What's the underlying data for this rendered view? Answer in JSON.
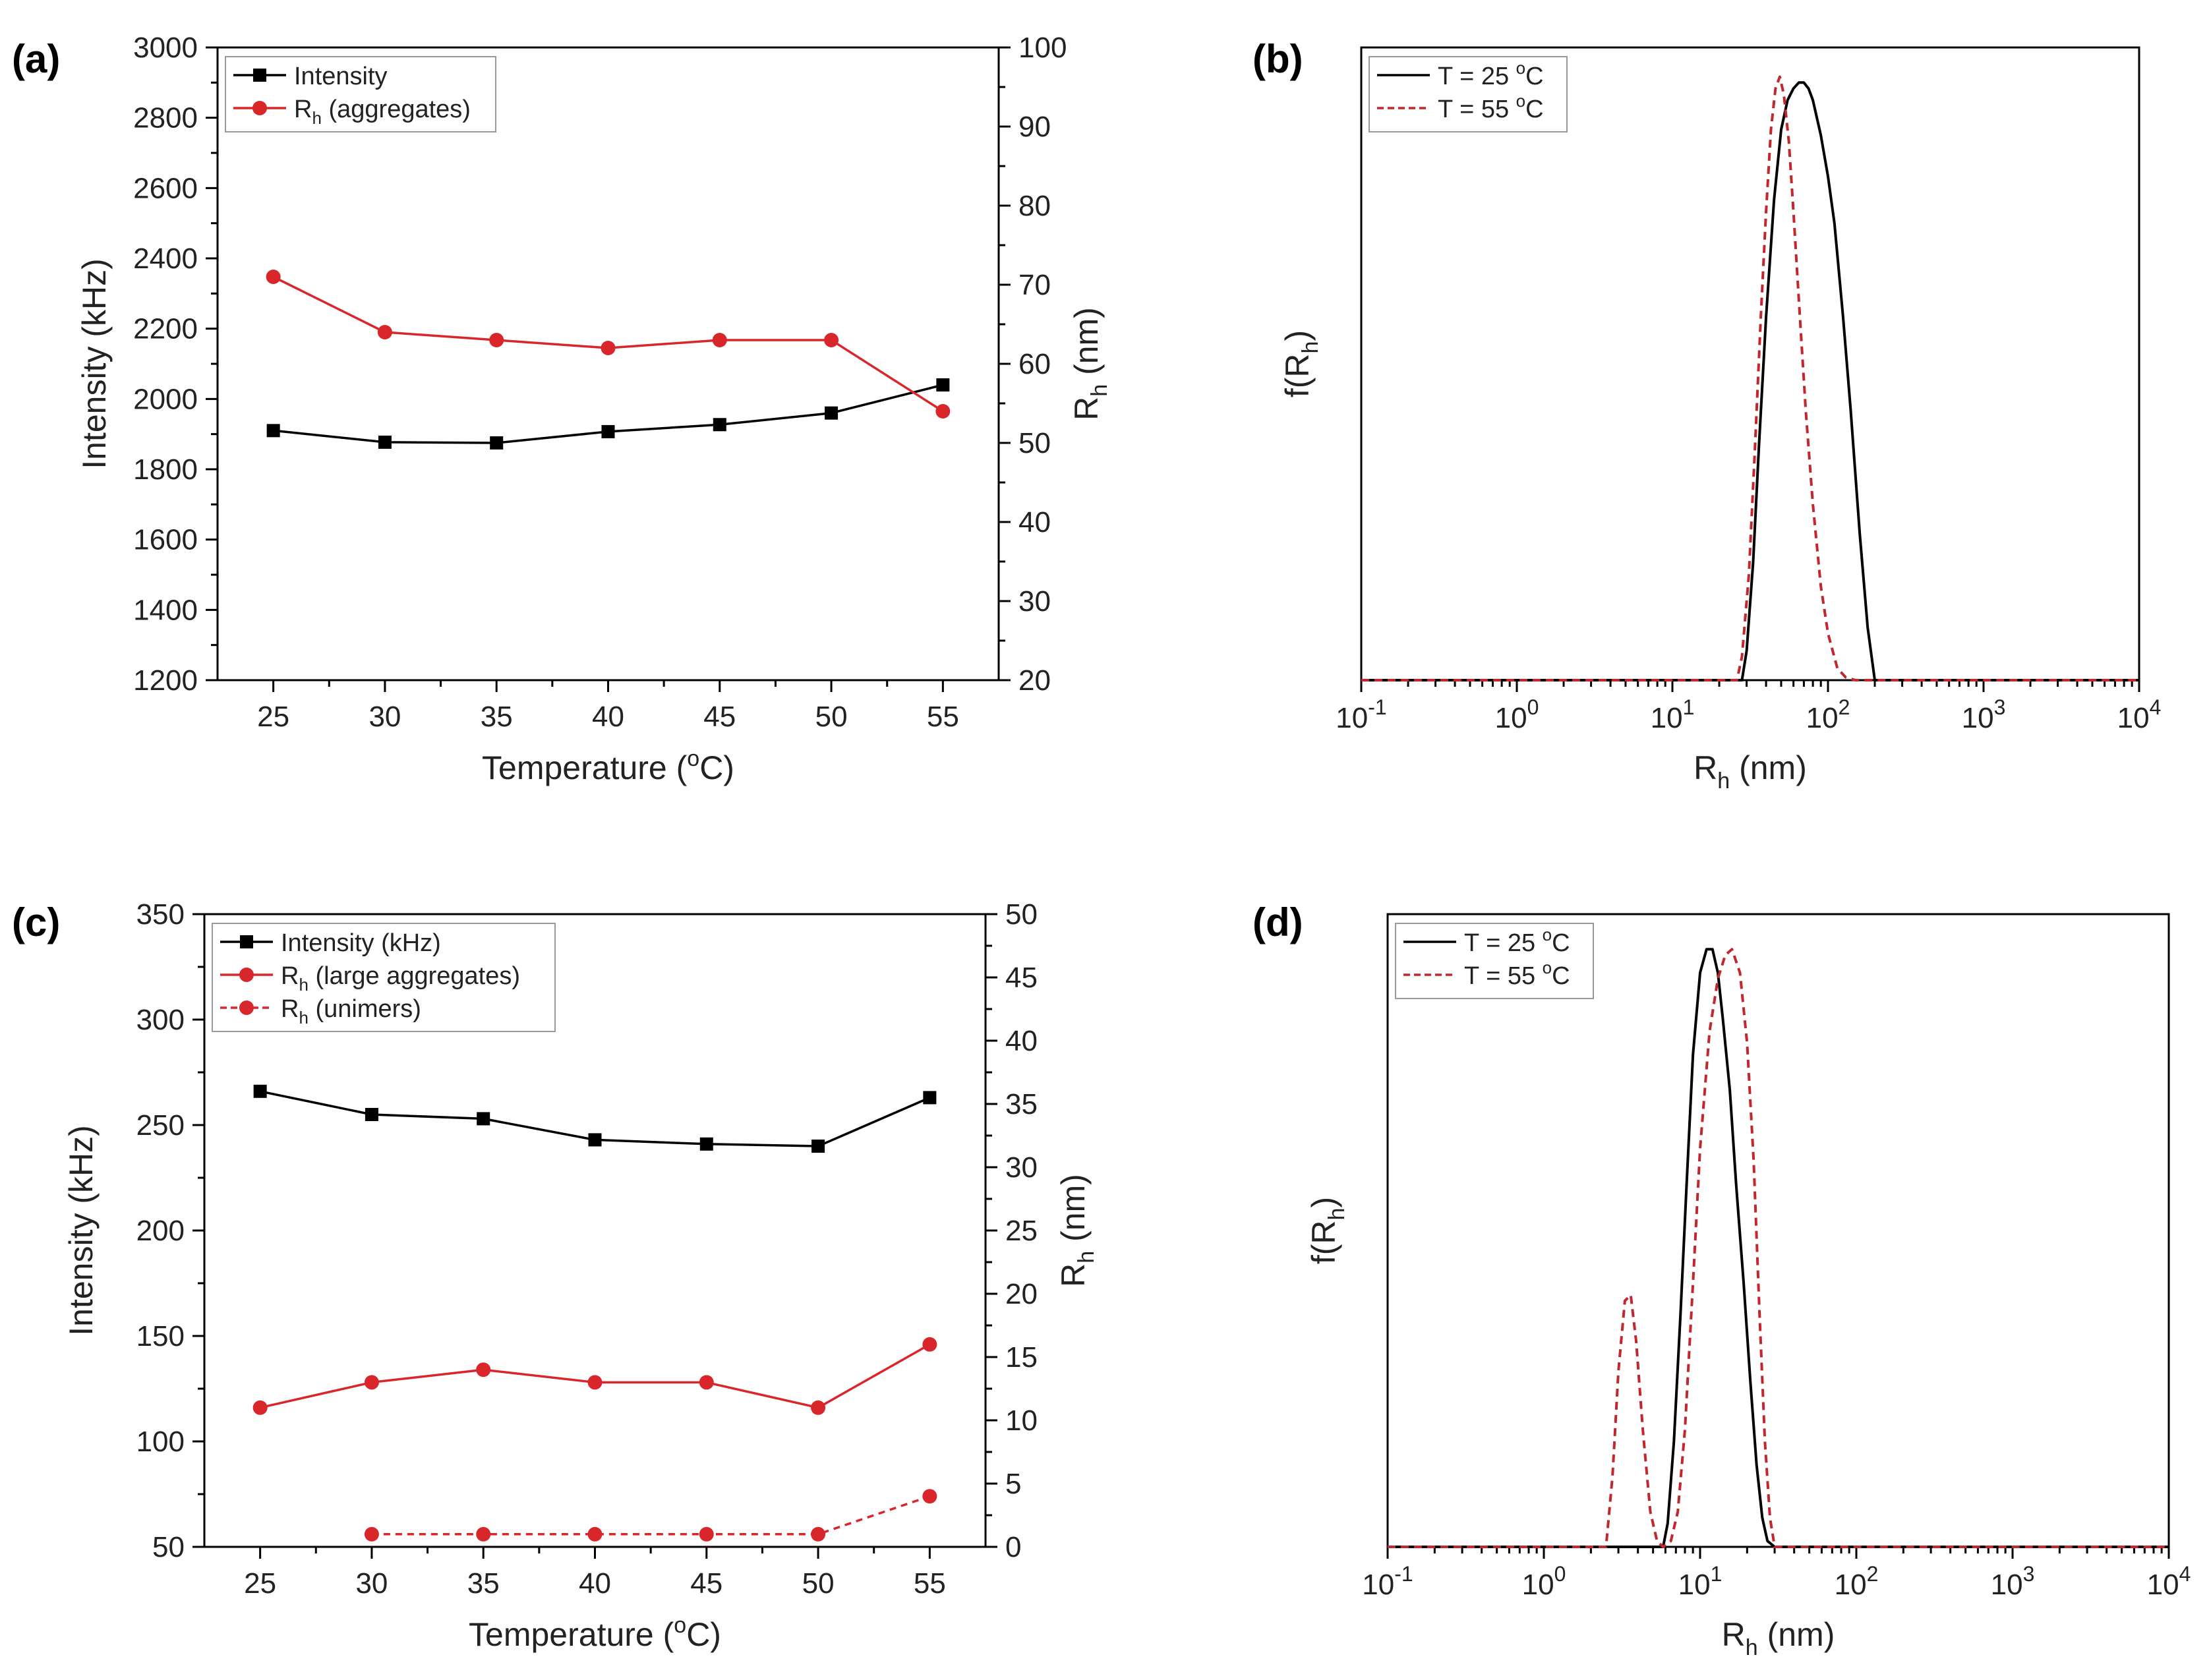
{
  "chart_data": [
    {
      "id": "a",
      "panel_label": "(a)",
      "type": "line",
      "title": "",
      "xlabel": "Temperature (oC)",
      "xlabel_main": "Temperature (",
      "xlabel_sup": "o",
      "xlabel_tail": "C)",
      "ylabel": "Intensity (kHz)",
      "y2label_main": "R",
      "y2label_sub": "h",
      "y2label_tail": " (nm)",
      "xlim": [
        22.5,
        57.5
      ],
      "ylim": [
        1200,
        3000
      ],
      "y2lim": [
        20,
        100
      ],
      "xticks": [
        25,
        30,
        35,
        40,
        45,
        50,
        55
      ],
      "yticks": [
        1200,
        1400,
        1600,
        1800,
        2000,
        2200,
        2400,
        2600,
        2800,
        3000
      ],
      "y2ticks": [
        20,
        30,
        40,
        50,
        60,
        70,
        80,
        90,
        100
      ],
      "legend_position": "top-left",
      "series": [
        {
          "name": "Intensity",
          "axis": "left",
          "color": "#000000",
          "marker": "square",
          "dashed": false,
          "legend_main": "Intensity",
          "legend_sub": "",
          "legend_tail": "",
          "x": [
            25,
            30,
            35,
            40,
            45,
            50,
            55
          ],
          "values": [
            1910,
            1877,
            1875,
            1907,
            1927,
            1960,
            2040
          ]
        },
        {
          "name": "Rh (aggregates)",
          "axis": "right",
          "color": "#d9262b",
          "marker": "circle",
          "dashed": false,
          "legend_main": "R",
          "legend_sub": "h",
          "legend_tail": " (aggregates)",
          "x": [
            25,
            30,
            35,
            40,
            45,
            50,
            55
          ],
          "values": [
            71,
            64,
            63,
            62,
            63,
            63,
            54
          ]
        }
      ]
    },
    {
      "id": "b",
      "panel_label": "(b)",
      "type": "line",
      "title": "",
      "xlabel": "Rh (nm)",
      "xlabel_main": "R",
      "xlabel_sub": "h",
      "xlabel_tail": " (nm)",
      "ylabel": "f(Rh)",
      "ylabel_main": "f(R",
      "ylabel_sub": "h",
      "ylabel_tail": ")",
      "xscale": "log",
      "xlim": [
        0.1,
        10000
      ],
      "ylim": [
        0,
        1.08
      ],
      "xticks_exp": [
        -1,
        0,
        1,
        2,
        3,
        4
      ],
      "legend_position": "top-left",
      "series": [
        {
          "name": "T = 25 oC",
          "color": "#000000",
          "dashed": false,
          "legend_main": "T = 25 ",
          "legend_sup": "o",
          "legend_tail": "C",
          "x": [
            0.1,
            28,
            30,
            33,
            36,
            40,
            45,
            50,
            55,
            60,
            65,
            70,
            75,
            80,
            90,
            100,
            110,
            125,
            140,
            160,
            180,
            200,
            10000
          ],
          "values": [
            0,
            0,
            0.05,
            0.2,
            0.4,
            0.62,
            0.82,
            0.94,
            0.99,
            1.01,
            1.02,
            1.02,
            1.01,
            0.99,
            0.93,
            0.86,
            0.78,
            0.62,
            0.46,
            0.25,
            0.09,
            0,
            0
          ]
        },
        {
          "name": "T = 55 oC",
          "color": "#c1272d",
          "dashed": true,
          "legend_main": "T = 55 ",
          "legend_sup": "o",
          "legend_tail": "C",
          "x": [
            0.1,
            26,
            28,
            31,
            34,
            37,
            40,
            43,
            46,
            49,
            52,
            56,
            60,
            66,
            72,
            80,
            90,
            100,
            115,
            130,
            150,
            170,
            10000
          ],
          "values": [
            0,
            0,
            0.04,
            0.18,
            0.4,
            0.62,
            0.8,
            0.94,
            1.01,
            1.03,
            1.0,
            0.92,
            0.8,
            0.62,
            0.46,
            0.3,
            0.16,
            0.08,
            0.02,
            0.005,
            0,
            0,
            0
          ]
        }
      ]
    },
    {
      "id": "c",
      "panel_label": "(c)",
      "type": "line",
      "title": "",
      "xlabel": "Temperature (oC)",
      "xlabel_main": "Temperature (",
      "xlabel_sup": "o",
      "xlabel_tail": "C)",
      "ylabel": "Intensity (kHz)",
      "y2label_main": "R",
      "y2label_sub": "h",
      "y2label_tail": " (nm)",
      "xlim": [
        22.5,
        57.5
      ],
      "ylim": [
        50,
        350
      ],
      "y2lim": [
        0,
        50
      ],
      "xticks": [
        25,
        30,
        35,
        40,
        45,
        50,
        55
      ],
      "yticks": [
        50,
        100,
        150,
        200,
        250,
        300,
        350
      ],
      "y2ticks": [
        0,
        5,
        10,
        15,
        20,
        25,
        30,
        35,
        40,
        45,
        50
      ],
      "legend_position": "top-left",
      "series": [
        {
          "name": "Intensity (kHz)",
          "axis": "left",
          "color": "#000000",
          "marker": "square",
          "dashed": false,
          "legend_main": "Intensity (kHz)",
          "legend_sub": "",
          "legend_tail": "",
          "x": [
            25,
            30,
            35,
            40,
            45,
            50,
            55
          ],
          "values": [
            266,
            255,
            253,
            243,
            241,
            240,
            263
          ]
        },
        {
          "name": "Rh (large aggregates)",
          "axis": "right",
          "color": "#d9262b",
          "marker": "circle",
          "dashed": false,
          "legend_main": "R",
          "legend_sub": "h",
          "legend_tail": " (large aggregates)",
          "x": [
            25,
            30,
            35,
            40,
            45,
            50,
            55
          ],
          "values": [
            11,
            13,
            14,
            13,
            13,
            11,
            16
          ]
        },
        {
          "name": "Rh (unimers)",
          "axis": "right",
          "color": "#d9262b",
          "marker": "circle",
          "dashed": true,
          "legend_main": "R",
          "legend_sub": "h",
          "legend_tail": " (unimers)",
          "x": [
            30,
            35,
            40,
            45,
            50,
            55
          ],
          "values": [
            1,
            1,
            1,
            1,
            1,
            4
          ]
        }
      ]
    },
    {
      "id": "d",
      "panel_label": "(d)",
      "type": "line",
      "title": "",
      "xlabel": "Rh (nm)",
      "xlabel_main": "R",
      "xlabel_sub": "h",
      "xlabel_tail": " (nm)",
      "ylabel": "f(Rh)",
      "ylabel_main": "f(R",
      "ylabel_sub": "h",
      "ylabel_tail": ")",
      "xscale": "log",
      "xlim": [
        0.1,
        10000
      ],
      "ylim": [
        0,
        1.08
      ],
      "xticks_exp": [
        -1,
        0,
        1,
        2,
        3,
        4
      ],
      "legend_position": "top-left",
      "series": [
        {
          "name": "T = 25 oC",
          "color": "#000000",
          "dashed": false,
          "legend_main": "T = 25 ",
          "legend_sup": "o",
          "legend_tail": "C",
          "x": [
            0.1,
            5.8,
            6.2,
            6.8,
            7.5,
            8.2,
            9,
            10,
            11,
            12,
            13,
            14,
            15.5,
            17,
            19,
            21,
            23,
            25,
            27,
            30,
            10000
          ],
          "values": [
            0,
            0,
            0.04,
            0.18,
            0.4,
            0.62,
            0.84,
            0.98,
            1.02,
            1.02,
            0.98,
            0.9,
            0.78,
            0.62,
            0.45,
            0.28,
            0.14,
            0.05,
            0.01,
            0,
            0
          ]
        },
        {
          "name": "T = 55 oC",
          "color": "#c1272d",
          "dashed": true,
          "legend_main": "T = 55 ",
          "legend_sup": "o",
          "legend_tail": "C",
          "x": [
            0.1,
            2.5,
            2.75,
            3.0,
            3.3,
            3.6,
            3.9,
            4.3,
            4.8,
            5.3,
            5.8,
            6.5,
            7.2,
            8,
            9,
            10,
            11.5,
            13,
            14.5,
            16,
            18,
            20,
            22,
            24,
            26,
            28,
            30,
            10000
          ],
          "values": [
            0,
            0,
            0.12,
            0.3,
            0.42,
            0.43,
            0.35,
            0.2,
            0.06,
            0.01,
            0,
            0.01,
            0.06,
            0.2,
            0.45,
            0.68,
            0.88,
            0.97,
            1.01,
            1.02,
            0.98,
            0.86,
            0.66,
            0.4,
            0.18,
            0.05,
            0,
            0
          ]
        }
      ]
    }
  ]
}
